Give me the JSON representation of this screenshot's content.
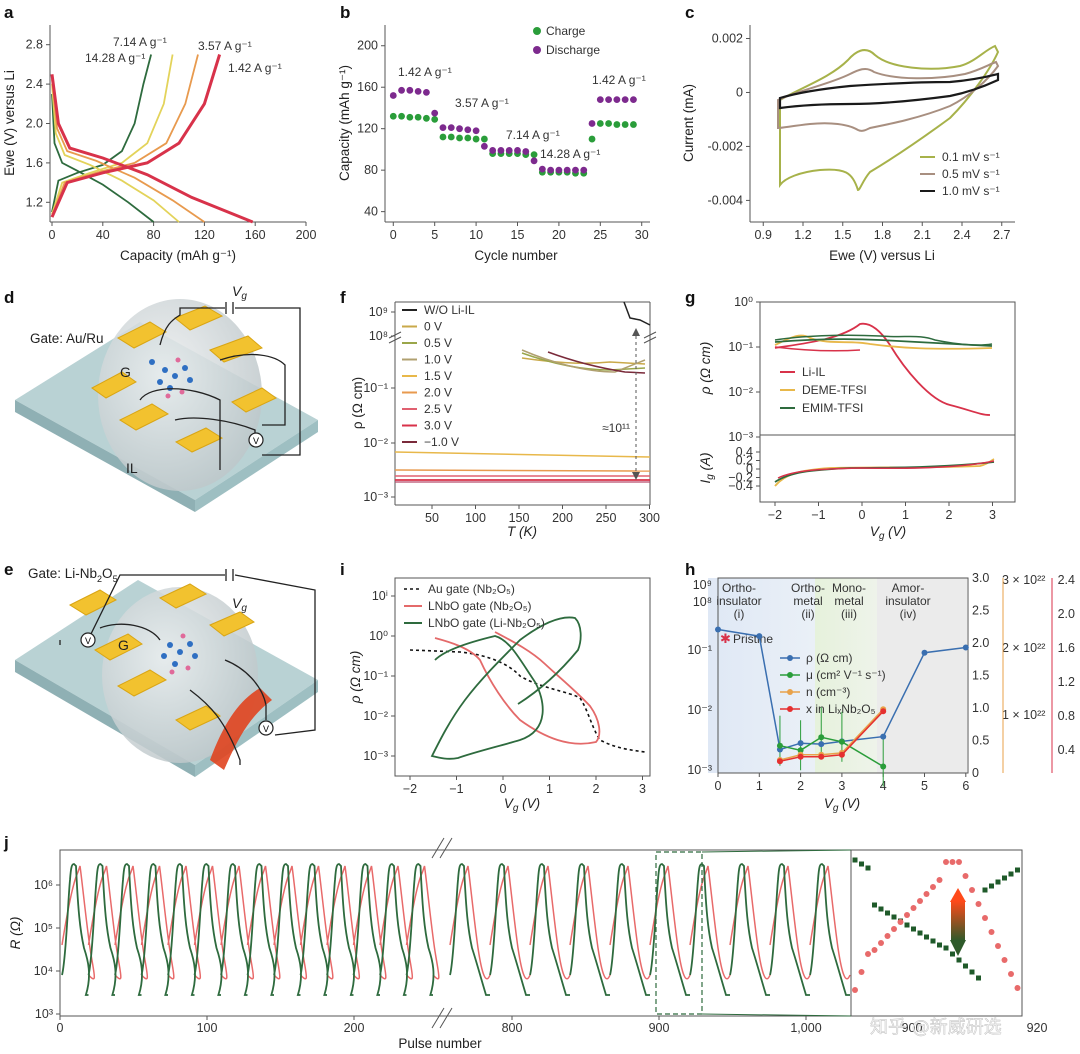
{
  "panels": {
    "a": "a",
    "b": "b",
    "c": "c",
    "d": "d",
    "e": "e",
    "f": "f",
    "g": "g",
    "h": "h",
    "i": "i",
    "j": "j"
  },
  "device_labels": {
    "d_gate": "Gate: Au/Ru",
    "e_gate": "Gate: Li-Nb2O5",
    "e_gate_prefix": "Gate: Li-Nb",
    "e_gate_sub1": "2",
    "e_gate_mid": "O",
    "e_gate_sub2": "5",
    "G": "G",
    "IL": "IL",
    "Vg": "V",
    "Vg_sub": "g"
  },
  "chart_data": [
    {
      "id": "a",
      "type": "line",
      "xlabel": "Capacity (mAh g⁻¹)",
      "ylabel": "Ewe (V) versus Li",
      "xlim": [
        0,
        200
      ],
      "ylim": [
        1.0,
        3.0
      ],
      "xticks": [
        "0",
        "40",
        "80",
        "120",
        "160",
        "200"
      ],
      "yticks": [
        "1.2",
        "1.6",
        "2.0",
        "2.4",
        "2.8"
      ],
      "series": [
        {
          "name": "14.28 A g⁻¹",
          "color": "#2e6b3e",
          "charge": [
            [
              0,
              1.1
            ],
            [
              5,
              1.42
            ],
            [
              20,
              1.5
            ],
            [
              40,
              1.58
            ],
            [
              55,
              1.72
            ],
            [
              65,
              2.0
            ],
            [
              72,
              2.4
            ],
            [
              78,
              2.7
            ]
          ],
          "discharge": [
            [
              0,
              2.3
            ],
            [
              2,
              1.8
            ],
            [
              8,
              1.6
            ],
            [
              20,
              1.52
            ],
            [
              40,
              1.38
            ],
            [
              60,
              1.2
            ],
            [
              80,
              1.0
            ]
          ]
        },
        {
          "name": "7.14 A g⁻¹",
          "color": "#e3d35a",
          "charge": [
            [
              0,
              1.08
            ],
            [
              8,
              1.4
            ],
            [
              30,
              1.5
            ],
            [
              55,
              1.6
            ],
            [
              75,
              1.8
            ],
            [
              88,
              2.2
            ],
            [
              95,
              2.7
            ]
          ],
          "discharge": [
            [
              0,
              2.4
            ],
            [
              3,
              1.9
            ],
            [
              10,
              1.68
            ],
            [
              30,
              1.58
            ],
            [
              55,
              1.42
            ],
            [
              80,
              1.22
            ],
            [
              100,
              1.0
            ]
          ]
        },
        {
          "name": "3.57 A g⁻¹",
          "color": "#e89a4e",
          "charge": [
            [
              0,
              1.06
            ],
            [
              10,
              1.4
            ],
            [
              35,
              1.5
            ],
            [
              65,
              1.6
            ],
            [
              90,
              1.8
            ],
            [
              105,
              2.2
            ],
            [
              115,
              2.7
            ]
          ],
          "discharge": [
            [
              0,
              2.45
            ],
            [
              4,
              1.95
            ],
            [
              12,
              1.72
            ],
            [
              35,
              1.62
            ],
            [
              65,
              1.45
            ],
            [
              95,
              1.22
            ],
            [
              120,
              1.0
            ]
          ]
        },
        {
          "name": "1.42 A g⁻¹",
          "color": "#d8324a",
          "charge": [
            [
              0,
              1.05
            ],
            [
              12,
              1.4
            ],
            [
              40,
              1.5
            ],
            [
              75,
              1.6
            ],
            [
              100,
              1.8
            ],
            [
              120,
              2.2
            ],
            [
              132,
              2.7
            ]
          ],
          "discharge": [
            [
              0,
              2.5
            ],
            [
              5,
              2.0
            ],
            [
              14,
              1.75
            ],
            [
              40,
              1.65
            ],
            [
              75,
              1.48
            ],
            [
              110,
              1.25
            ],
            [
              158,
              1.0
            ]
          ]
        }
      ]
    },
    {
      "id": "b",
      "type": "scatter",
      "xlabel": "Cycle number",
      "ylabel": "Capacity (mAh g⁻¹)",
      "xlim": [
        -1,
        31
      ],
      "ylim": [
        30,
        220
      ],
      "xticks": [
        "0",
        "5",
        "10",
        "15",
        "20",
        "25",
        "30"
      ],
      "yticks": [
        "40",
        "80",
        "120",
        "160",
        "200"
      ],
      "legend": [
        "Charge",
        "Discharge"
      ],
      "annotations": [
        "1.42 A g⁻¹",
        "3.57 A g⁻¹",
        "7.14 A g⁻¹",
        "14.28 A g⁻¹",
        "1.42 A g⁻¹"
      ],
      "charge": [
        132,
        132,
        131,
        131,
        130,
        129,
        112,
        112,
        111,
        111,
        110,
        110,
        96,
        96,
        96,
        96,
        95,
        95,
        78,
        78,
        78,
        78,
        77,
        77,
        110,
        125,
        125,
        124,
        124,
        124
      ],
      "discharge": [
        152,
        157,
        157,
        156,
        155,
        135,
        121,
        121,
        120,
        119,
        118,
        103,
        99,
        99,
        99,
        99,
        98,
        89,
        81,
        80,
        80,
        80,
        80,
        80,
        125,
        148,
        148,
        148,
        148,
        148
      ]
    },
    {
      "id": "c",
      "type": "line",
      "xlabel": "Ewe (V) versus Li",
      "ylabel": "Current (mA)",
      "xlim": [
        0.8,
        2.8
      ],
      "ylim": [
        -0.0048,
        0.0025
      ],
      "xticks": [
        "0.9",
        "1.2",
        "1.5",
        "1.8",
        "2.1",
        "2.4",
        "2.7"
      ],
      "yticks": [
        "0.002",
        "0",
        "-0.002",
        "-0.004"
      ],
      "legend": [
        "0.1 mV s⁻¹",
        "0.5 mV s⁻¹",
        "1.0 mV s⁻¹"
      ]
    },
    {
      "id": "f",
      "type": "line",
      "xlabel": "T (K)",
      "ylabel": "ρ (Ω cm)",
      "xticks": [
        "50",
        "100",
        "150",
        "200",
        "250",
        "300"
      ],
      "yticks": [
        "10⁻³",
        "10⁻²",
        "10⁻¹",
        "10⁸",
        "10⁹"
      ],
      "legend": [
        "W/O Li-IL",
        "0 V",
        "0.5 V",
        "1.0 V",
        "1.5 V",
        "2.0 V",
        "2.5 V",
        "3.0 V",
        "−1.0 V"
      ],
      "annotation": "≈10¹¹"
    },
    {
      "id": "g",
      "type": "line",
      "xlabel": "V_g (V)",
      "ylabel_top": "ρ (Ω cm)",
      "ylabel_bottom": "I_g (A)",
      "xticks": [
        "−2",
        "−1",
        "0",
        "1",
        "2",
        "3"
      ],
      "yticks_top": [
        "10⁰",
        "10⁻¹",
        "10⁻²",
        "10⁻³"
      ],
      "yticks_bottom": [
        "0.4",
        "0.2",
        "0",
        "−0.2",
        "−0.4"
      ],
      "legend": [
        "Li-IL",
        "DEME-TFSI",
        "EMIM-TFSI"
      ]
    },
    {
      "id": "h",
      "type": "scatter",
      "xlabel": "V_g (V)",
      "xticks": [
        "0",
        "1",
        "2",
        "3",
        "4",
        "5",
        "6"
      ],
      "yticks_left": [
        "10⁻³",
        "10⁻²",
        "10⁻¹",
        "10⁸",
        "10⁹"
      ],
      "yticks_green": [
        "0",
        "0.5",
        "1.0",
        "1.5",
        "2.0",
        "2.5",
        "3.0"
      ],
      "yticks_orange": [
        "1 × 10²²",
        "2 × 10²²",
        "3 × 10²²"
      ],
      "yticks_red": [
        "0.4",
        "0.8",
        "1.2",
        "1.6",
        "2.0",
        "2.4"
      ],
      "regions": [
        "Ortho-insulator (i)",
        "Ortho-metal (ii)",
        "Mono-metal (iii)",
        "Amor-insulator (iv)"
      ],
      "region_lines": [
        [
          "Ortho-",
          "insulator",
          "(i)"
        ],
        [
          "Ortho-",
          "metal",
          "(ii)"
        ],
        [
          "Mono-",
          "metal",
          "(iii)"
        ],
        [
          "Amor-",
          "insulator",
          "(iv)"
        ]
      ],
      "pristine": "Pristine",
      "legend": [
        "ρ (Ω cm)",
        "μ (cm² V⁻¹ s⁻¹)",
        "n (cm⁻³)",
        "x in LiₓNb₂O₅"
      ],
      "rho": [
        [
          0,
          0.22
        ],
        [
          1,
          0.17
        ],
        [
          1.5,
          0.0022
        ],
        [
          2,
          0.0028
        ],
        [
          2.5,
          0.0027
        ],
        [
          3,
          0.003
        ],
        [
          4,
          0.0036
        ],
        [
          5,
          0.09
        ],
        [
          6,
          0.11
        ]
      ],
      "mu": [
        [
          1.5,
          0.42
        ],
        [
          2,
          0.35
        ],
        [
          2.5,
          0.55
        ],
        [
          3,
          0.48
        ],
        [
          4,
          0.1
        ]
      ],
      "n": [
        [
          1.5,
          0.2
        ],
        [
          2,
          0.28
        ],
        [
          2.5,
          0.28
        ],
        [
          3,
          0.31
        ],
        [
          4,
          0.98
        ]
      ],
      "x": [
        [
          1.5,
          0.18
        ],
        [
          2,
          0.25
        ],
        [
          2.5,
          0.25
        ],
        [
          3,
          0.28
        ],
        [
          4,
          0.95
        ]
      ]
    },
    {
      "id": "i",
      "type": "line",
      "xlabel": "V_g (V)",
      "ylabel": "ρ (Ω cm)",
      "xticks": [
        "−2",
        "−1",
        "0",
        "1",
        "2",
        "3"
      ],
      "yticks": [
        "10ⁱ",
        "10⁰",
        "10⁻¹",
        "10⁻²",
        "10⁻³"
      ],
      "legend": [
        "Au gate (Nb₂O₅)",
        "LNbO gate (Nb₂O₅)",
        "LNbO gate (Li-Nb₂O₅)"
      ]
    },
    {
      "id": "j",
      "type": "line",
      "xlabel": "Pulse number",
      "ylabel": "R (Ω)",
      "xticks": [
        "0",
        "100",
        "200",
        "800",
        "900",
        "1,000"
      ],
      "yticks": [
        "10³",
        "10⁴",
        "10⁵",
        "10⁶"
      ],
      "inset_xticks": [
        "900",
        "920"
      ],
      "cycles_left": 14,
      "cycles_right": 10
    }
  ],
  "watermark": "知乎 @新威研选"
}
